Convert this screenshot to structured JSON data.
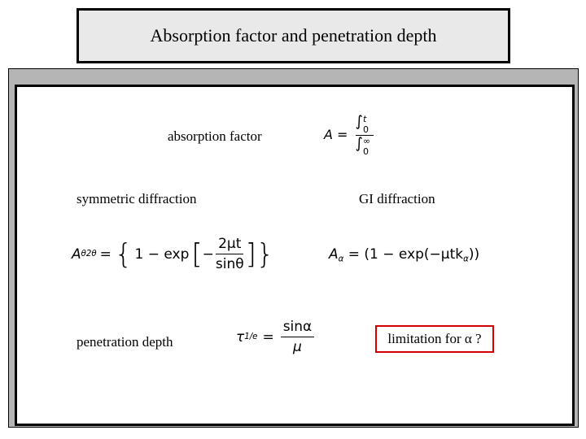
{
  "slide": {
    "title": "Absorption factor and penetration depth",
    "absorption_factor_label": "absorption factor",
    "absorption_formula": {
      "lhs": "A",
      "equals": "=",
      "upper_limit_1": "t",
      "lower_limit_1": "0",
      "upper_limit_2": "∞",
      "lower_limit_2": "0"
    },
    "symmetric_label": "symmetric diffraction",
    "gi_label": "GI diffraction",
    "symmetric_formula": {
      "lhs": "A",
      "lhs_sub": "θ2θ",
      "one_minus_exp": "1 − exp",
      "numerator": "2μt",
      "denominator": "sinθ",
      "minus": "−"
    },
    "gi_formula": {
      "lhs": "A",
      "lhs_sub": "α",
      "rhs": "= (1 − exp(−μtk",
      "k_sub": "α",
      "close": "))"
    },
    "penetration_label": "penetration depth",
    "penetration_formula": {
      "lhs": "τ",
      "lhs_sub": "1/e",
      "equals": "=",
      "numerator": "sinα",
      "denominator": "μ"
    },
    "limitation_text": "limitation for α ?"
  },
  "colors": {
    "title_background": "#e9e9e9",
    "frame_gray": "#b5b5b5",
    "highlight_border": "#d40000"
  }
}
